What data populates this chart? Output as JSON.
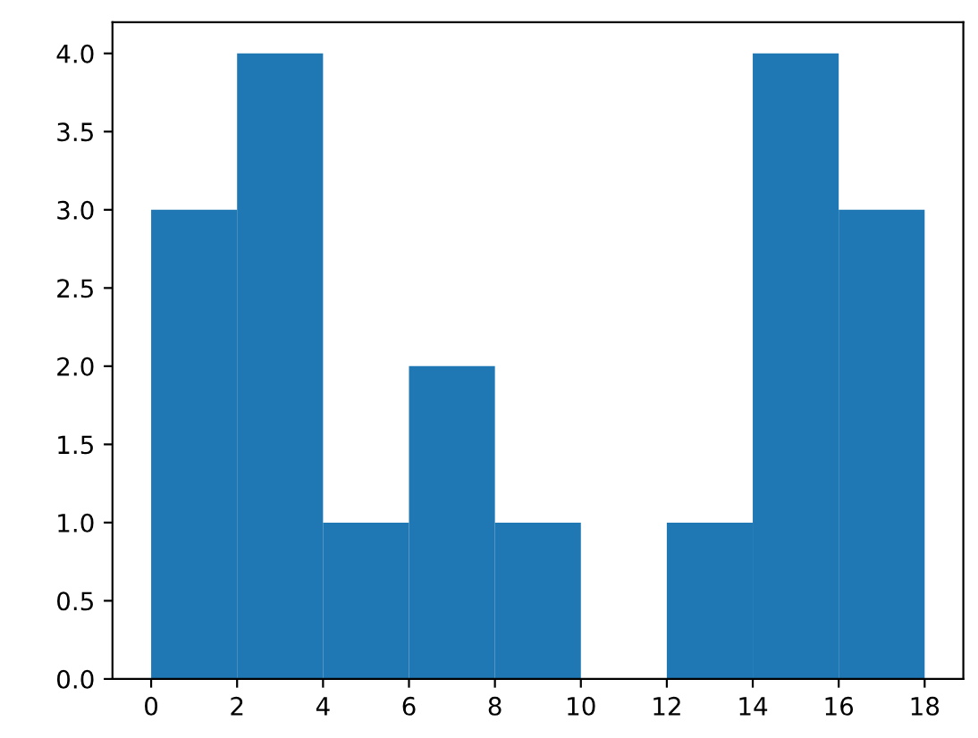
{
  "chart_data": {
    "type": "histogram",
    "bins": [
      0,
      2,
      4,
      6,
      8,
      10,
      12,
      14,
      16,
      18
    ],
    "values": [
      3,
      4,
      1,
      2,
      1,
      0,
      1,
      4,
      3
    ],
    "color": "#1f77b4",
    "xlim": [
      -0.9,
      18.9
    ],
    "ylim": [
      0,
      4.2
    ],
    "xticks": [
      0,
      2,
      4,
      6,
      8,
      10,
      12,
      14,
      16,
      18
    ],
    "yticks": [
      {
        "value": 0,
        "label": "0.0"
      },
      {
        "value": 0.5,
        "label": "0.5"
      },
      {
        "value": 1,
        "label": "1.0"
      },
      {
        "value": 1.5,
        "label": "1.5"
      },
      {
        "value": 2,
        "label": "2.0"
      },
      {
        "value": 2.5,
        "label": "2.5"
      },
      {
        "value": 3,
        "label": "3.0"
      },
      {
        "value": 3.5,
        "label": "3.5"
      },
      {
        "value": 4,
        "label": "4.0"
      }
    ],
    "grid": false
  }
}
